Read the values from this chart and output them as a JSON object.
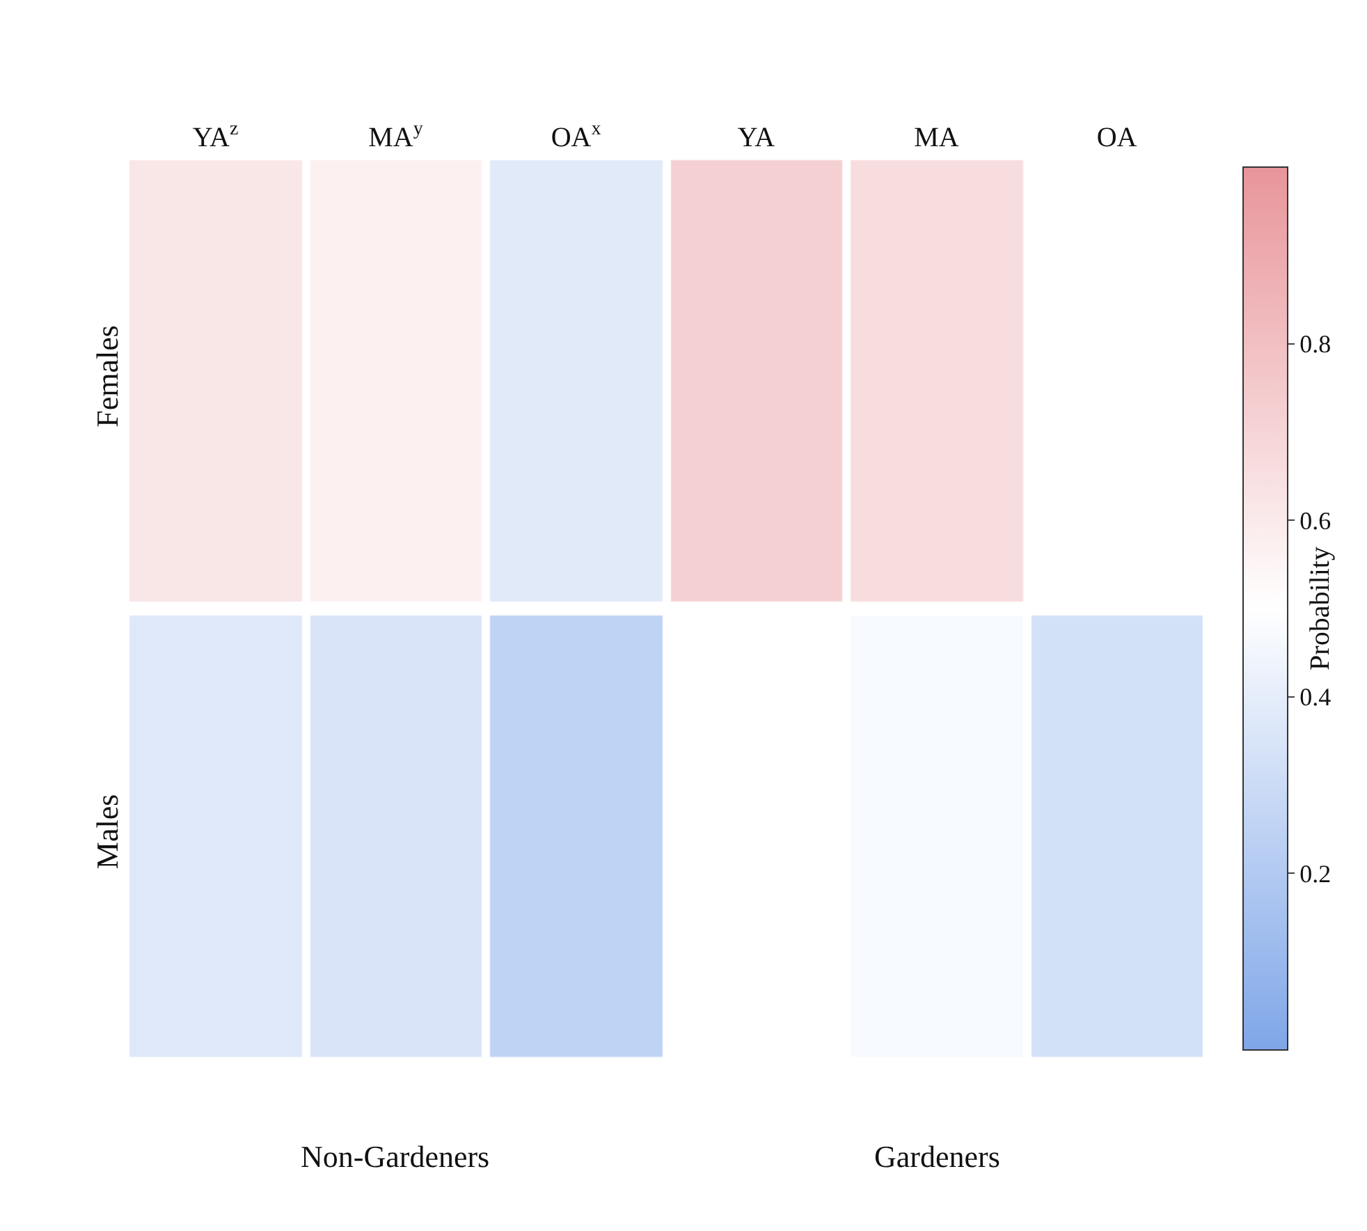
{
  "chart_data": {
    "type": "heatmap",
    "categories": [
      "YA$^{z}$",
      "MA$^{y}$",
      "OA$^{x}$",
      "YA",
      "MA",
      "OA"
    ],
    "y_categories": [
      "Females",
      "Males"
    ],
    "cells": [
      [
        0.62,
        0.57,
        0.38,
        0.72,
        0.66,
        0.5
      ],
      [
        0.37,
        0.35,
        0.25,
        0.5,
        0.47,
        0.33
      ]
    ],
    "clabel": "Probability",
    "clim": [
      0,
      1
    ],
    "cticks": [
      0.2,
      0.4,
      0.6,
      0.8
    ],
    "annotations": [
      "Non-Gardeners",
      "Gardeners"
    ]
  }
}
